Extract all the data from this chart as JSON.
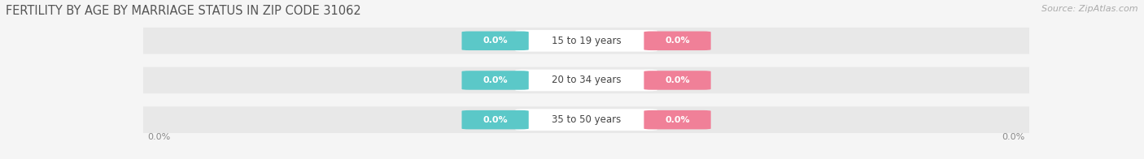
{
  "title": "FERTILITY BY AGE BY MARRIAGE STATUS IN ZIP CODE 31062",
  "source": "Source: ZipAtlas.com",
  "categories": [
    "15 to 19 years",
    "20 to 34 years",
    "35 to 50 years"
  ],
  "married_color": "#5bc8c8",
  "unmarried_color": "#f08098",
  "bar_bg_color": "#e8e8e8",
  "center_pill_color": "#ffffff",
  "title_fontsize": 10.5,
  "source_fontsize": 8,
  "value_fontsize": 8,
  "category_fontsize": 8.5,
  "legend_fontsize": 8.5,
  "background_color": "#f5f5f5",
  "axis_label_left": "0.0%",
  "axis_label_right": "0.0%",
  "value_label": "0.0%"
}
